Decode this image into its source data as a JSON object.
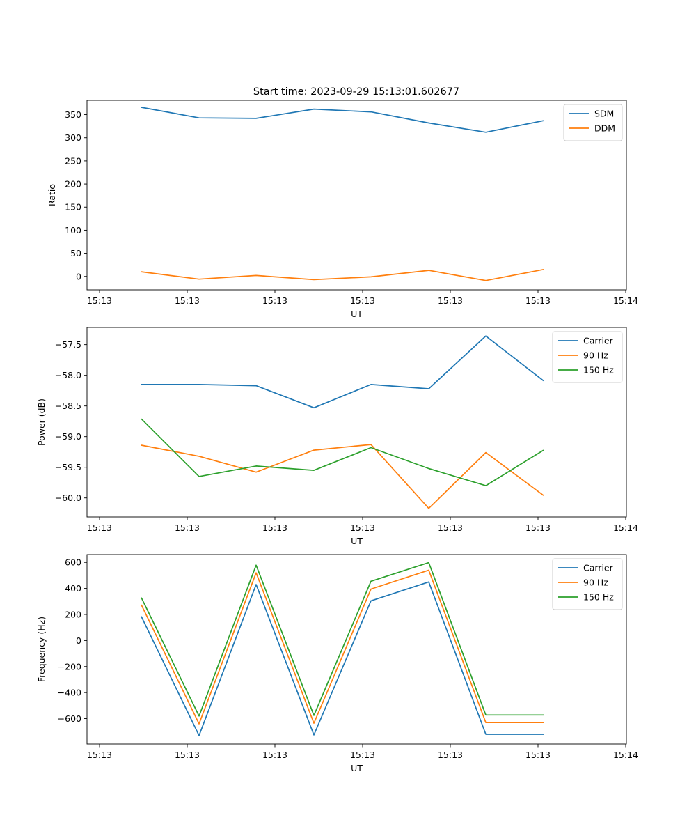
{
  "figure": {
    "title": "Start time: 2023-09-29 15:13:01.602677"
  },
  "colors": {
    "blue": "#1f77b4",
    "orange": "#ff7f0e",
    "green": "#2ca02c"
  },
  "chart_data": [
    {
      "type": "line",
      "title": "Start time: 2023-09-29 15:13:01.602677",
      "xlabel": "UT",
      "ylabel": "Ratio",
      "x_tick_labels": [
        "15:13",
        "15:13",
        "15:13",
        "15:13",
        "15:13",
        "15:13",
        "15:14"
      ],
      "x_points": 8,
      "ylim": [
        -29,
        381
      ],
      "y_ticks": [
        0,
        50,
        100,
        150,
        200,
        250,
        300,
        350
      ],
      "legend_position": "top-right",
      "series": [
        {
          "name": "SDM",
          "color": "#1f77b4",
          "values": [
            366,
            343,
            342,
            362,
            356,
            332,
            312,
            337
          ]
        },
        {
          "name": "DDM",
          "color": "#ff7f0e",
          "values": [
            10,
            -6,
            2,
            -7,
            -1,
            13,
            -9,
            15
          ]
        }
      ]
    },
    {
      "type": "line",
      "title": "",
      "xlabel": "UT",
      "ylabel": "Power (dB)",
      "x_tick_labels": [
        "15:13",
        "15:13",
        "15:13",
        "15:13",
        "15:13",
        "15:13",
        "15:14"
      ],
      "x_points": 8,
      "ylim": [
        -60.31,
        -57.22
      ],
      "y_ticks": [
        -60.0,
        -59.5,
        -59.0,
        -58.5,
        -58.0,
        -57.5
      ],
      "y_tick_labels": [
        "−60.0",
        "−59.5",
        "−59.0",
        "−58.5",
        "−58.0",
        "−57.5"
      ],
      "legend_position": "top-right",
      "series": [
        {
          "name": "Carrier",
          "color": "#1f77b4",
          "values": [
            -58.15,
            -58.15,
            -58.17,
            -58.53,
            -58.15,
            -58.22,
            -57.36,
            -58.09
          ]
        },
        {
          "name": "90 Hz",
          "color": "#ff7f0e",
          "values": [
            -59.14,
            -59.32,
            -59.58,
            -59.22,
            -59.13,
            -60.17,
            -59.26,
            -59.96
          ]
        },
        {
          "name": "150 Hz",
          "color": "#2ca02c",
          "values": [
            -58.71,
            -59.65,
            -59.48,
            -59.55,
            -59.18,
            -59.52,
            -59.8,
            -59.22
          ]
        }
      ]
    },
    {
      "type": "line",
      "title": "",
      "xlabel": "UT",
      "ylabel": "Frequency (Hz)",
      "x_tick_labels": [
        "15:13",
        "15:13",
        "15:13",
        "15:13",
        "15:13",
        "15:13",
        "15:14"
      ],
      "x_points": 8,
      "ylim": [
        -795,
        660
      ],
      "y_ticks": [
        -600,
        -400,
        -200,
        0,
        200,
        400,
        600
      ],
      "y_tick_labels": [
        "−600",
        "−400",
        "−200",
        "0",
        "200",
        "400",
        "600"
      ],
      "legend_position": "top-right",
      "series": [
        {
          "name": "Carrier",
          "color": "#1f77b4",
          "values": [
            185,
            -730,
            430,
            -725,
            305,
            450,
            -720,
            -720
          ]
        },
        {
          "name": "90 Hz",
          "color": "#ff7f0e",
          "values": [
            275,
            -640,
            520,
            -635,
            395,
            540,
            -630,
            -630
          ]
        },
        {
          "name": "150 Hz",
          "color": "#2ca02c",
          "values": [
            330,
            -580,
            578,
            -575,
            455,
            598,
            -572,
            -572
          ]
        }
      ]
    }
  ]
}
